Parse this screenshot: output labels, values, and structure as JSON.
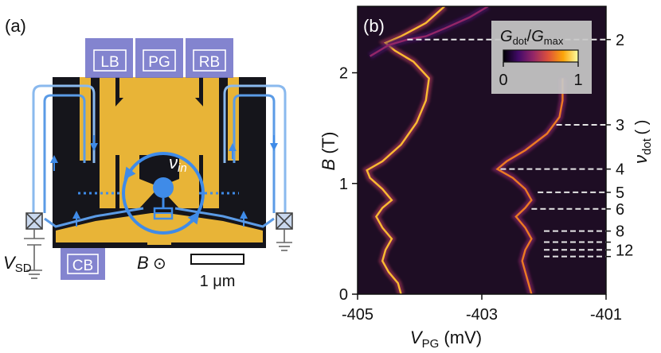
{
  "panel_a": {
    "label": "(a)",
    "gates": {
      "left": "LB",
      "plunger": "PG",
      "right": "RB",
      "center": "CB"
    },
    "nu_label": "ν",
    "nu_sub": "in",
    "vsd_main": "V",
    "vsd_sub": "SD",
    "field_label": "B",
    "field_symbol": "⊙",
    "scalebar_label": "1 μm",
    "colors": {
      "gate": "#6d6fc7",
      "gold": "#e8b437",
      "edge_channel": "#5b9be6",
      "substrate": "#15151b"
    }
  },
  "panel_b": {
    "label": "(b)",
    "colorbar": {
      "title_main": "G",
      "title_sub1": "dot",
      "title_slash": "/",
      "title_main2": "G",
      "title_sub2": "max",
      "min_label": "0",
      "max_label": "1",
      "colormap": "inferno",
      "stops": [
        "#000004",
        "#420a68",
        "#932667",
        "#dd513a",
        "#fca50a",
        "#fcffa4"
      ]
    },
    "right_axis_label_main": "ν",
    "right_axis_label_sub": "dot",
    "right_axis_paren": "(  )"
  },
  "chart_data": {
    "type": "heatmap",
    "xlabel_main": "V",
    "xlabel_sub": "PG",
    "xlabel_unit": "(mV)",
    "ylabel_main": "B",
    "ylabel_unit": "(T)",
    "xlim": [
      -405,
      -401
    ],
    "ylim": [
      0,
      2.6
    ],
    "xticks": [
      -405,
      -403,
      -401
    ],
    "xtick_labels": [
      "-405",
      "-403",
      "-401"
    ],
    "yticks": [
      0,
      1,
      2
    ],
    "ytick_labels": [
      "0",
      "1",
      "2"
    ],
    "background": "#1e0d24",
    "right_axis_ticks": [
      {
        "b": 2.3,
        "label": "2",
        "x_start": -404.2
      },
      {
        "b": 1.53,
        "label": "3",
        "x_start": -401.8
      },
      {
        "b": 1.13,
        "label": "4",
        "x_start": -402.7
      },
      {
        "b": 0.92,
        "label": "5",
        "x_start": -402.1
      },
      {
        "b": 0.77,
        "label": "6",
        "x_start": -402.2
      },
      {
        "b": 0.57,
        "label": "8",
        "x_start": -402.0
      },
      {
        "b": 0.47,
        "label": "",
        "x_start": -402.0
      },
      {
        "b": 0.4,
        "label": "12",
        "x_start": -402.0
      },
      {
        "b": 0.34,
        "label": "",
        "x_start": -402.0
      }
    ],
    "series": [
      {
        "intensity": 0.85,
        "points": [
          [
            -404.3,
            0.0
          ],
          [
            -404.35,
            0.1
          ],
          [
            -404.5,
            0.2
          ],
          [
            -404.6,
            0.3
          ],
          [
            -404.55,
            0.4
          ],
          [
            -404.45,
            0.5
          ],
          [
            -404.6,
            0.6
          ],
          [
            -404.7,
            0.7
          ],
          [
            -404.6,
            0.78
          ],
          [
            -404.45,
            0.85
          ],
          [
            -404.6,
            0.95
          ],
          [
            -404.8,
            1.05
          ],
          [
            -404.85,
            1.12
          ],
          [
            -404.6,
            1.2
          ],
          [
            -404.3,
            1.35
          ],
          [
            -404.05,
            1.55
          ],
          [
            -403.9,
            1.75
          ],
          [
            -403.85,
            1.95
          ],
          [
            -404.1,
            2.1
          ],
          [
            -404.4,
            2.2
          ],
          [
            -404.55,
            2.27
          ],
          [
            -404.3,
            2.33
          ],
          [
            -403.9,
            2.45
          ],
          [
            -403.6,
            2.6
          ]
        ]
      },
      {
        "intensity": 0.7,
        "points": [
          [
            -402.2,
            0.0
          ],
          [
            -402.25,
            0.1
          ],
          [
            -402.3,
            0.2
          ],
          [
            -402.35,
            0.3
          ],
          [
            -402.3,
            0.4
          ],
          [
            -402.2,
            0.5
          ],
          [
            -402.3,
            0.6
          ],
          [
            -402.45,
            0.7
          ],
          [
            -402.3,
            0.78
          ],
          [
            -402.2,
            0.85
          ],
          [
            -402.3,
            0.95
          ],
          [
            -402.5,
            1.05
          ],
          [
            -402.75,
            1.13
          ],
          [
            -402.6,
            1.2
          ],
          [
            -402.3,
            1.3
          ],
          [
            -401.95,
            1.45
          ],
          [
            -401.75,
            1.6
          ],
          [
            -401.7,
            1.75
          ],
          [
            -401.7,
            1.95
          ]
        ]
      },
      {
        "intensity": 0.4,
        "points": [
          [
            -404.8,
            2.15
          ],
          [
            -404.5,
            2.25
          ],
          [
            -404.2,
            2.3
          ],
          [
            -403.9,
            2.33
          ],
          [
            -403.6,
            2.4
          ],
          [
            -403.2,
            2.5
          ],
          [
            -402.9,
            2.6
          ]
        ]
      }
    ]
  }
}
